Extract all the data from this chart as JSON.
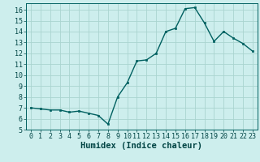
{
  "x": [
    0,
    1,
    2,
    3,
    4,
    5,
    6,
    7,
    8,
    9,
    10,
    11,
    12,
    13,
    14,
    15,
    16,
    17,
    18,
    19,
    20,
    21,
    22,
    23
  ],
  "y": [
    7.0,
    6.9,
    6.8,
    6.8,
    6.6,
    6.7,
    6.5,
    6.3,
    5.5,
    8.0,
    9.3,
    11.3,
    11.4,
    12.0,
    14.0,
    14.3,
    16.1,
    16.2,
    14.8,
    13.1,
    14.0,
    13.4,
    12.9,
    12.2
  ],
  "line_color": "#006060",
  "marker": "s",
  "markersize": 2.0,
  "linewidth": 1.0,
  "bg_color": "#cdeeed",
  "grid_color": "#aad4d0",
  "xlabel": "Humidex (Indice chaleur)",
  "xlabel_fontsize": 7.5,
  "xlabel_color": "#004444",
  "xlabel_weight": "bold",
  "ylabel_ticks": [
    5,
    6,
    7,
    8,
    9,
    10,
    11,
    12,
    13,
    14,
    15,
    16
  ],
  "xlim": [
    -0.5,
    23.5
  ],
  "ylim": [
    5.0,
    16.6
  ],
  "tick_fontsize": 6.0,
  "tick_color": "#004444",
  "spine_color": "#006060"
}
